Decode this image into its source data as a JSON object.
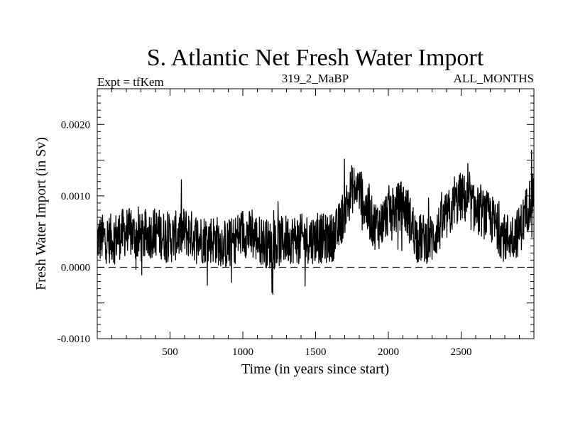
{
  "chart_data": {
    "type": "line",
    "title": "S. Atlantic Net Fresh Water Import",
    "subtitle_left": "Expt = tfKem",
    "subtitle_center": "319_2_MaBP",
    "subtitle_right": "ALL_MONTHS",
    "xlabel": "Time (in years since start)",
    "ylabel": "Fresh Water Import (in Sv)",
    "xlim": [
      0,
      3000
    ],
    "ylim": [
      -0.001,
      0.0025
    ],
    "xticks": [
      500,
      1000,
      1500,
      2000,
      2500
    ],
    "xtick_labels": [
      "500",
      "1000",
      "1500",
      "2000",
      "2500"
    ],
    "yticks": [
      -0.001,
      0,
      0.001,
      0.002
    ],
    "ytick_labels": [
      "-0.0010",
      "0.0000",
      "0.0010",
      "0.0020"
    ],
    "reference_line": {
      "y": 0,
      "style": "dashed"
    },
    "grid": false,
    "series": [
      {
        "x": [
          0,
          100,
          200,
          300,
          400,
          500,
          600,
          700,
          800,
          900,
          1000,
          1100,
          1200,
          1300,
          1400,
          1500,
          1600,
          1650,
          1700,
          1750,
          1800,
          1850,
          1900,
          1950,
          2000,
          2050,
          2100,
          2200,
          2300,
          2400,
          2500,
          2600,
          2700,
          2800,
          2900,
          2950,
          3000
        ],
        "y": [
          0.0004,
          0.0004,
          0.0005,
          0.0004,
          0.0005,
          0.0004,
          0.0005,
          0.0004,
          0.0004,
          0.0003,
          0.0005,
          0.0004,
          0.0003,
          0.0004,
          0.0004,
          0.0004,
          0.0004,
          0.0005,
          0.0008,
          0.0011,
          0.0011,
          0.0008,
          0.0006,
          0.0006,
          0.0008,
          0.0008,
          0.0009,
          0.0004,
          0.0004,
          0.0007,
          0.001,
          0.0008,
          0.0007,
          0.0004,
          0.0005,
          0.0008,
          0.0011
        ],
        "noise_amplitude": 0.00035
      }
    ]
  }
}
